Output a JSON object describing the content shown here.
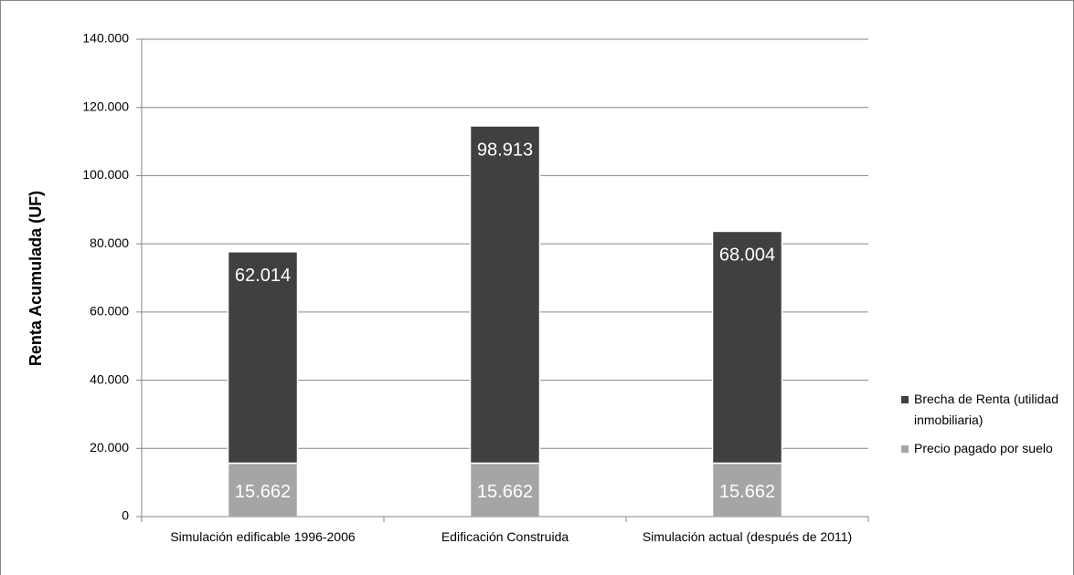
{
  "chart_data": {
    "type": "stacked_bar",
    "y_label": "Renta Acumulada (UF)",
    "categories": [
      "Simulación edificable 1996-2006",
      "Edificación Construida",
      "Simulación actual (después de 2011)"
    ],
    "series": [
      {
        "name": "Precio pagado por suelo",
        "color": "#a5a5a5",
        "values": [
          15662,
          15662,
          15662
        ],
        "value_labels": [
          "15.662",
          "15.662",
          "15.662"
        ]
      },
      {
        "name": "Brecha de Renta (utilidad inmobiliaria)",
        "color": "#404040",
        "values": [
          62014,
          98913,
          68004
        ],
        "value_labels": [
          "62.014",
          "98.913",
          "68.004"
        ]
      }
    ],
    "ylim": [
      0,
      140000
    ],
    "yticks": [
      0,
      {
        "value": 20000,
        "label": "20.000"
      },
      {
        "value": 40000,
        "label": "40.000"
      },
      {
        "value": 60000,
        "label": "60.000"
      },
      {
        "value": 80000,
        "label": "80.000"
      },
      {
        "value": 100000,
        "label": "100.000"
      },
      {
        "value": 120000,
        "label": "120.000"
      },
      {
        "value": 140000,
        "label": "140.000"
      }
    ],
    "grid": true,
    "legend": "right"
  }
}
